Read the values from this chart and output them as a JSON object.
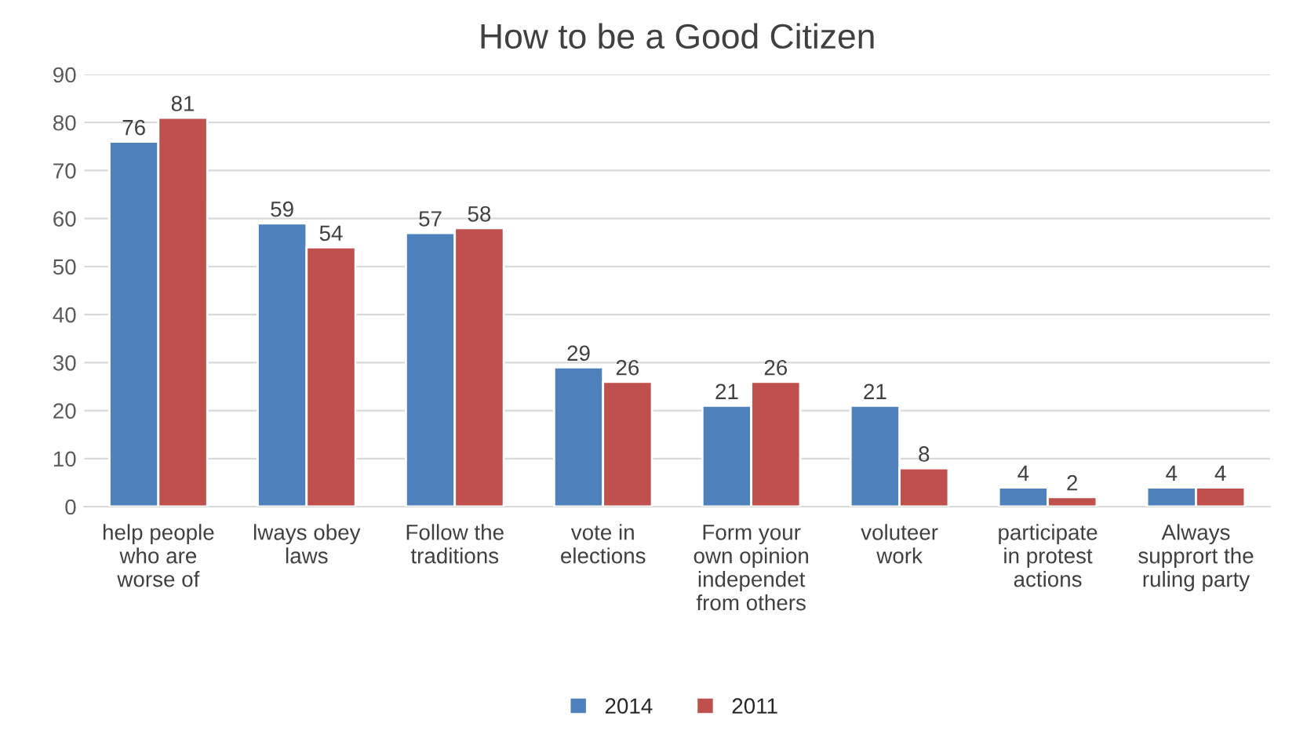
{
  "chart_data": {
    "type": "bar",
    "title": "How to be a Good Citizen",
    "categories": [
      "help people\nwho are\nworse of",
      "lways obey\nlaws",
      "Follow the\ntraditions",
      "vote in\nelections",
      "Form your\nown opinion\nindependet\nfrom others",
      "voluteer\nwork",
      "participate\nin protest\nactions",
      "Always\nsupprort the\nruling party"
    ],
    "series": [
      {
        "name": "2014",
        "color": "#4f81bd",
        "values": [
          76,
          59,
          57,
          29,
          21,
          21,
          4,
          4
        ]
      },
      {
        "name": "2011",
        "color": "#c0504d",
        "values": [
          81,
          54,
          58,
          26,
          26,
          8,
          2,
          4
        ]
      }
    ],
    "ylim": [
      0,
      90
    ],
    "yticks": [
      0,
      10,
      20,
      30,
      40,
      50,
      60,
      70,
      80,
      90
    ],
    "grid": "y",
    "legend": "bottom",
    "data_labels": true
  }
}
